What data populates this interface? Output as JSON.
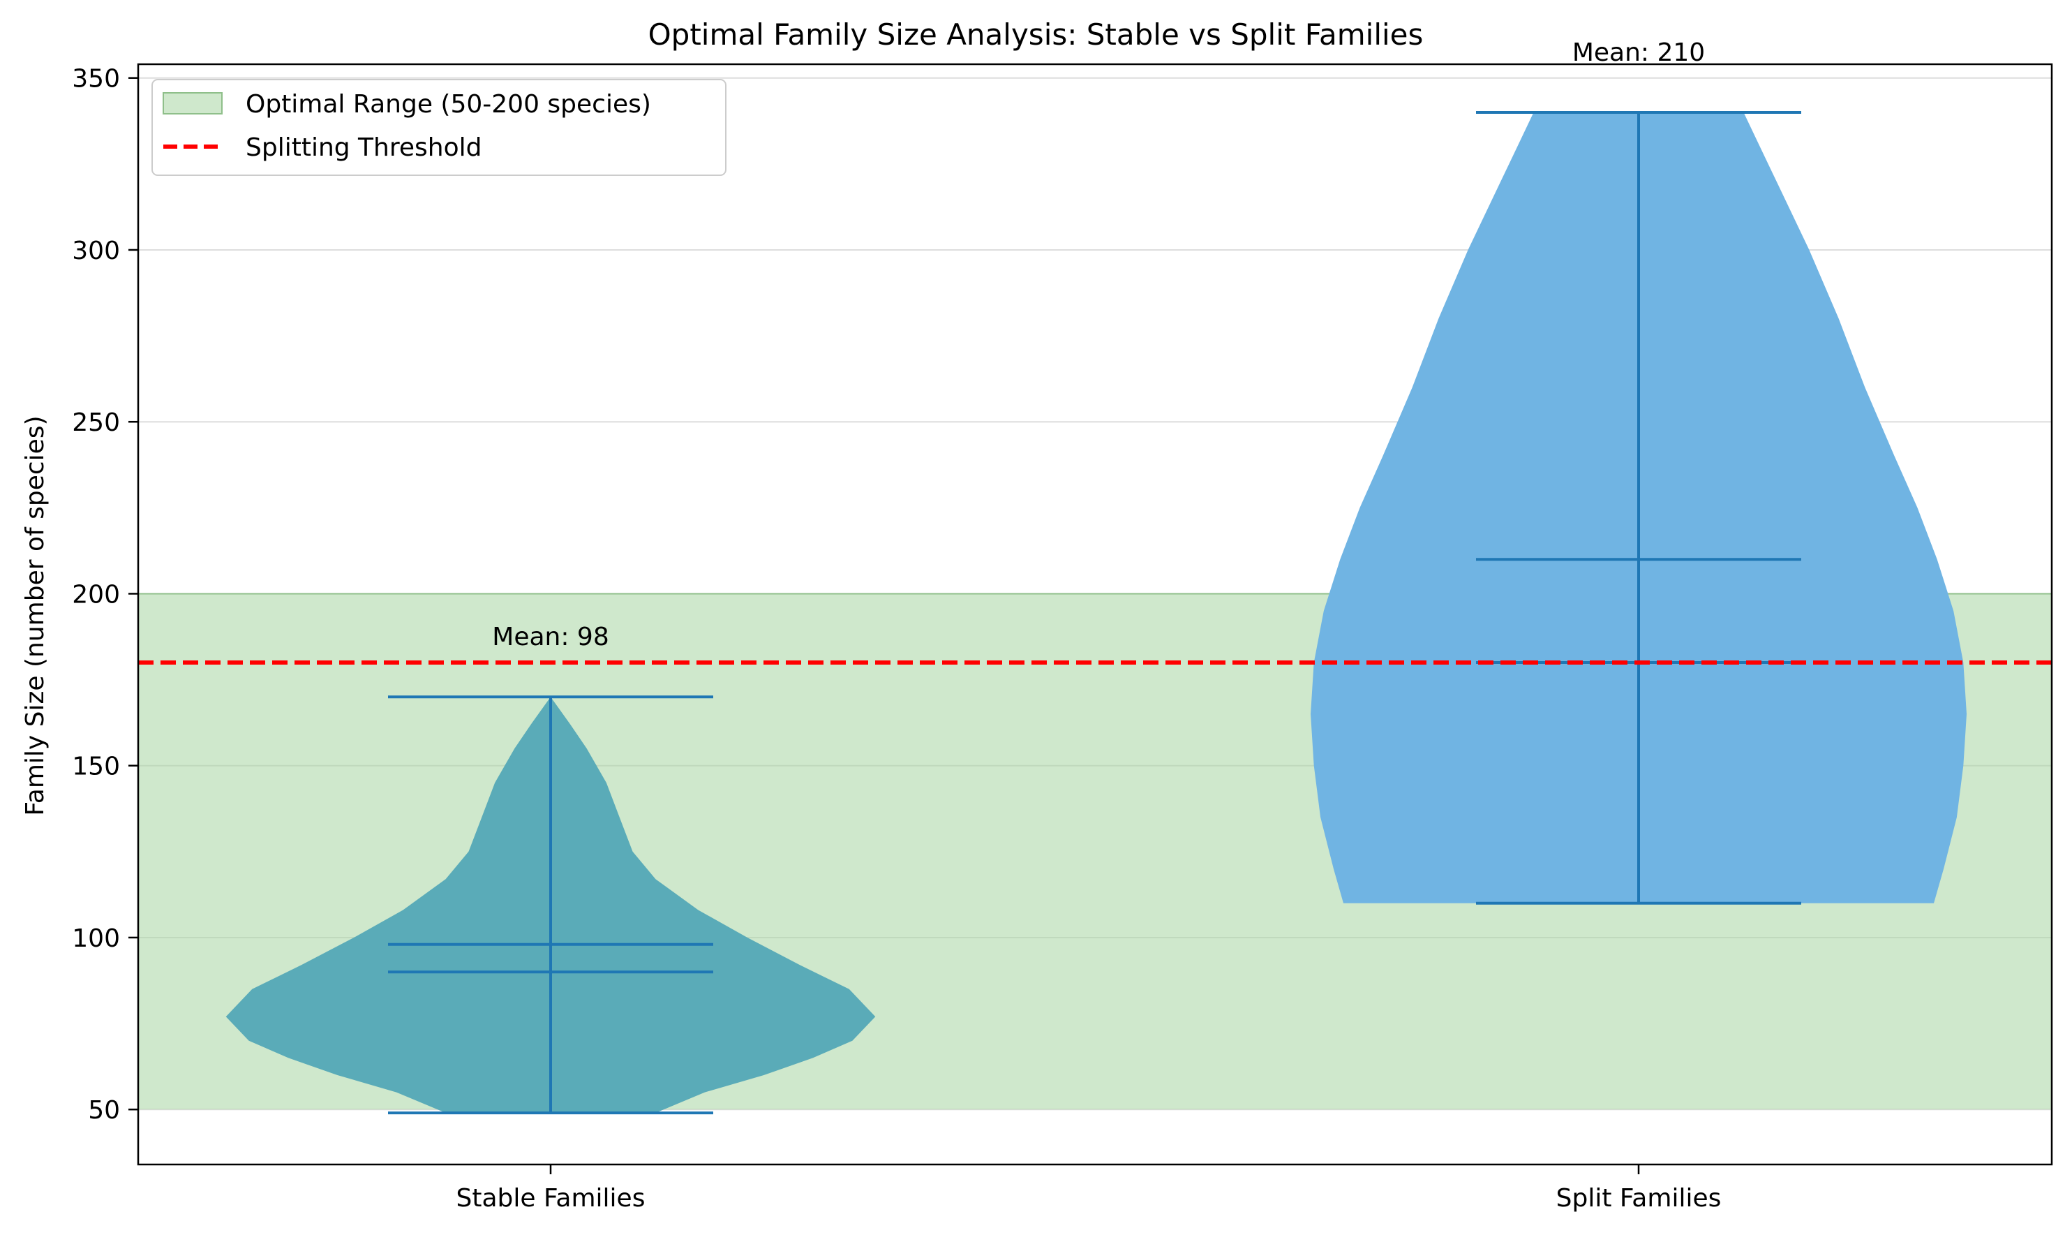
{
  "chart_data": {
    "type": "violin",
    "title": "Optimal Family Size Analysis: Stable vs Split Families",
    "ylabel": "Family Size (number of species)",
    "xlabel": "",
    "ylim": [
      34,
      354
    ],
    "yticks": [
      50,
      100,
      150,
      200,
      250,
      300,
      350
    ],
    "grid": "y",
    "legend_placement": "top-left",
    "categories": [
      "Stable Families",
      "Split Families"
    ],
    "violins": [
      {
        "category": "Stable Families",
        "min": 49,
        "max": 170,
        "median": 90,
        "mean": 98,
        "mean_label": "Mean: 98",
        "color": "#5aabb8",
        "profile": [
          [
            49,
            0.32
          ],
          [
            55,
            0.47
          ],
          [
            60,
            0.65
          ],
          [
            65,
            0.8
          ],
          [
            70,
            0.92
          ],
          [
            77,
            0.99
          ],
          [
            85,
            0.91
          ],
          [
            92,
            0.76
          ],
          [
            100,
            0.6
          ],
          [
            108,
            0.45
          ],
          [
            117,
            0.32
          ],
          [
            125,
            0.25
          ],
          [
            135,
            0.21
          ],
          [
            145,
            0.17
          ],
          [
            155,
            0.11
          ],
          [
            162,
            0.06
          ],
          [
            170,
            0.0
          ]
        ]
      },
      {
        "category": "Split Families",
        "min": 110,
        "max": 340,
        "median": 180,
        "mean": 210,
        "mean_label": "Mean: 210",
        "color": "#70b4e3",
        "profile": [
          [
            110,
            0.9
          ],
          [
            120,
            0.93
          ],
          [
            135,
            0.97
          ],
          [
            150,
            0.99
          ],
          [
            165,
            1.0
          ],
          [
            180,
            0.99
          ],
          [
            195,
            0.96
          ],
          [
            210,
            0.91
          ],
          [
            225,
            0.85
          ],
          [
            240,
            0.78
          ],
          [
            260,
            0.69
          ],
          [
            280,
            0.61
          ],
          [
            300,
            0.52
          ],
          [
            320,
            0.42
          ],
          [
            330,
            0.37
          ],
          [
            340,
            0.32
          ]
        ]
      }
    ],
    "optimal_range": {
      "label": "Optimal Range (50-200 species)",
      "low": 50,
      "high": 200,
      "color": "#a8d5a2"
    },
    "threshold": {
      "label": "Splitting Threshold",
      "value": 180,
      "color": "#ff0000"
    },
    "line_color": "#1f77b4"
  }
}
